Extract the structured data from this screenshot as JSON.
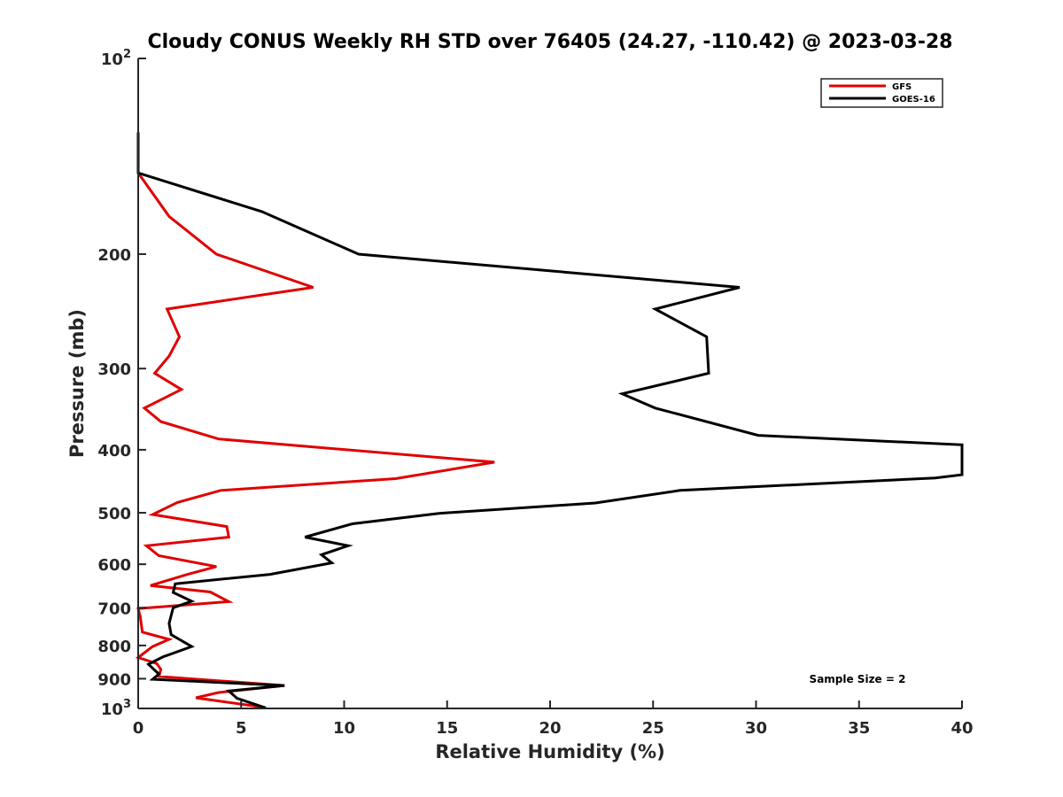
{
  "chart_data": {
    "type": "line",
    "title": "Cloudy CONUS Weekly RH STD over 76405 (24.27, -110.42) @ 2023-03-28",
    "xlabel": "Relative Humidity (%)",
    "ylabel": "Pressure (mb)",
    "xlim": [
      0,
      40
    ],
    "ylim": [
      100,
      1000
    ],
    "y_scale": "log",
    "y_reversed": true,
    "grid": false,
    "legend_position": "top-right",
    "x_ticks": [
      0,
      5,
      10,
      15,
      20,
      25,
      30,
      35,
      40
    ],
    "x_tick_labels": [
      "0",
      "5",
      "10",
      "15",
      "20",
      "25",
      "30",
      "35",
      "40"
    ],
    "y_ticks": [
      100,
      200,
      300,
      400,
      500,
      600,
      700,
      800,
      900,
      1000
    ],
    "y_tick_labels": [
      {
        "base": "10",
        "exp": "2"
      },
      {
        "base": "200"
      },
      {
        "base": "300"
      },
      {
        "base": "400"
      },
      {
        "base": "500"
      },
      {
        "base": "600"
      },
      {
        "base": "700"
      },
      {
        "base": "800"
      },
      {
        "base": "900"
      },
      {
        "base": "10",
        "exp": "3"
      }
    ],
    "annotation": "Sample Size = 2",
    "series": [
      {
        "name": "GFS",
        "color": "#e00000",
        "points": [
          [
            0,
            130
          ],
          [
            0,
            150
          ],
          [
            1.5,
            175
          ],
          [
            3.8,
            200
          ],
          [
            8.5,
            225
          ],
          [
            1.4,
            243
          ],
          [
            2,
            268
          ],
          [
            1.5,
            287
          ],
          [
            0.8,
            305
          ],
          [
            2.1,
            323
          ],
          [
            0.3,
            345
          ],
          [
            1.1,
            362
          ],
          [
            3.9,
            385
          ],
          [
            17.3,
            418
          ],
          [
            12.5,
            443
          ],
          [
            4,
            462
          ],
          [
            1.9,
            482
          ],
          [
            0.7,
            503
          ],
          [
            4.3,
            525
          ],
          [
            4.4,
            545
          ],
          [
            0.4,
            562
          ],
          [
            1,
            582
          ],
          [
            3.8,
            605
          ],
          [
            2.4,
            622
          ],
          [
            0.6,
            647
          ],
          [
            3.5,
            662
          ],
          [
            4.4,
            685
          ],
          [
            0,
            702
          ],
          [
            0.1,
            722
          ],
          [
            0.2,
            763
          ],
          [
            1.5,
            783
          ],
          [
            0.7,
            803
          ],
          [
            0,
            835
          ],
          [
            0.9,
            853
          ],
          [
            1.1,
            871
          ],
          [
            1,
            893
          ],
          [
            7.1,
            922
          ],
          [
            3.9,
            945
          ],
          [
            2.8,
            963
          ],
          [
            6,
            995
          ]
        ]
      },
      {
        "name": "GOES-16",
        "color": "#000000",
        "points": [
          [
            0,
            130
          ],
          [
            0,
            150
          ],
          [
            6,
            172
          ],
          [
            10.7,
            200
          ],
          [
            29.2,
            225
          ],
          [
            25.1,
            243
          ],
          [
            27.6,
            268
          ],
          [
            27.7,
            305
          ],
          [
            23.5,
            328
          ],
          [
            25.1,
            345
          ],
          [
            30.1,
            380
          ],
          [
            40,
            393
          ],
          [
            40,
            437
          ],
          [
            38.7,
            442
          ],
          [
            26.3,
            462
          ],
          [
            22.2,
            483
          ],
          [
            14.6,
            501
          ],
          [
            10.4,
            520
          ],
          [
            8.1,
            545
          ],
          [
            10.2,
            562
          ],
          [
            8.9,
            580
          ],
          [
            9.4,
            597
          ],
          [
            6.4,
            622
          ],
          [
            1.8,
            643
          ],
          [
            1.7,
            663
          ],
          [
            2.6,
            684
          ],
          [
            1.7,
            700
          ],
          [
            1.5,
            740
          ],
          [
            1.6,
            770
          ],
          [
            2.6,
            803
          ],
          [
            1.2,
            833
          ],
          [
            0.5,
            855
          ],
          [
            1,
            885
          ],
          [
            0.7,
            902
          ],
          [
            7.1,
            922
          ],
          [
            4.4,
            940
          ],
          [
            4.8,
            965
          ],
          [
            6.2,
            998
          ]
        ]
      }
    ]
  }
}
